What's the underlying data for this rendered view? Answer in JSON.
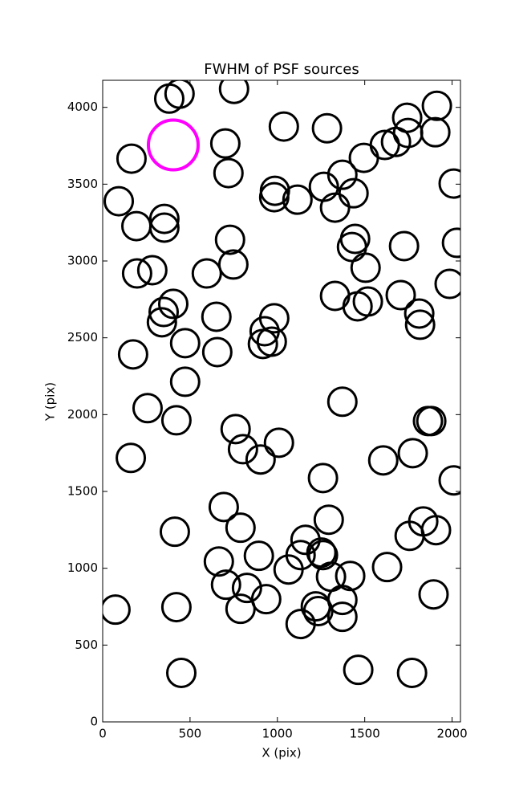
{
  "chart_data": {
    "type": "scatter",
    "title": "FWHM of PSF sources",
    "x_label": "X (pix)",
    "y_label": "Y (pix)",
    "xlim": [
      0,
      2048
    ],
    "ylim": [
      0,
      4176
    ],
    "xticks": [
      0,
      500,
      1000,
      1500,
      2000
    ],
    "yticks": [
      0,
      500,
      1000,
      1500,
      2000,
      2500,
      3000,
      3500,
      4000
    ],
    "series": [
      {
        "color": "#000000",
        "x": [
          381,
          440,
          752,
          165,
          702,
          720,
          92,
          193,
          353,
          353,
          197,
          284,
          596,
          729,
          748,
          349,
          404,
          339,
          472,
          651,
          656,
          174,
          472,
          257,
          422,
          161,
          761,
          803,
          904,
          1009,
          693,
          789,
          413,
          665,
          706,
          789,
          826,
          936,
          894,
          73,
          422,
          450,
          1064,
          1133,
          1161,
          1133,
          1220,
          1234,
          1261,
          1294,
          1252,
          1261,
          1307,
          1417,
          1372,
          1372,
          1463,
          1628,
          1606,
          1775,
          1372,
          1862,
          1881,
          1835,
          1757,
          1908,
          1894,
          1771,
          2009,
          982,
          927,
          917,
          968,
          1330,
          1459,
          1518,
          1505,
          1427,
          1445,
          1330,
          1436,
          1372,
          1266,
          1115,
          986,
          982,
          1037,
          1284,
          1495,
          1615,
          1679,
          1748,
          1743,
          1913,
          1904,
          2009,
          2028,
          1725,
          1706,
          1812,
          1817,
          1986
        ],
        "y": [
          4057,
          4089,
          4120,
          3666,
          3765,
          3572,
          3389,
          3227,
          3274,
          3217,
          2919,
          2940,
          2919,
          3138,
          2977,
          2668,
          2721,
          2601,
          2465,
          2637,
          2407,
          2392,
          2214,
          2042,
          1963,
          1718,
          1906,
          1775,
          1708,
          1817,
          1399,
          1264,
          1238,
          1044,
          893,
          736,
          872,
          799,
          1081,
          731,
          747,
          319,
          992,
          1086,
          1185,
          637,
          752,
          721,
          1587,
          1316,
          1102,
          1086,
          945,
          950,
          794,
          684,
          339,
          1008,
          1702,
          1749,
          2084,
          1958,
          1958,
          1305,
          1211,
          1248,
          830,
          319,
          1572,
          2627,
          2543,
          2460,
          2475,
          2773,
          2705,
          2736,
          2956,
          3091,
          3144,
          3347,
          3441,
          3561,
          3483,
          3399,
          3457,
          3415,
          3875,
          3864,
          3671,
          3755,
          3775,
          3833,
          3932,
          4010,
          3838,
          3504,
          3118,
          3097,
          2778,
          2658,
          2585,
          2851
        ]
      },
      {
        "color": "#ff00ff",
        "x": [
          404
        ],
        "y": [
          3755
        ]
      }
    ]
  }
}
